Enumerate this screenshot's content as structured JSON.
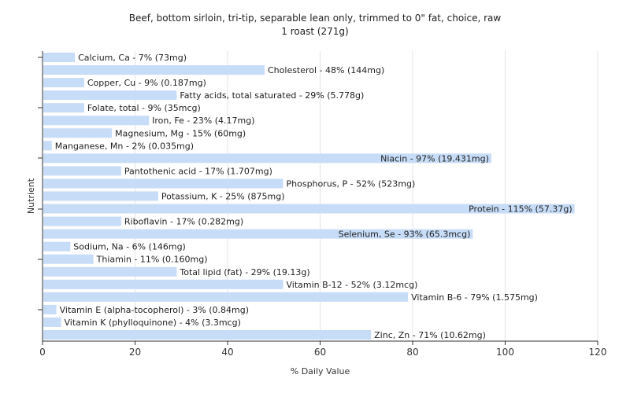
{
  "chart_data": {
    "type": "bar",
    "orientation": "horizontal",
    "title": "Beef, bottom sirloin, tri-tip, separable lean only, trimmed to 0\" fat, choice, raw",
    "subtitle": "1 roast (271g)",
    "xlabel": "% Daily Value",
    "ylabel": "Nutrient",
    "xlim": [
      0,
      120
    ],
    "xticks": [
      0,
      20,
      40,
      60,
      80,
      100,
      120
    ],
    "grid": true,
    "bar_color": "#c6dcf7",
    "categories": [
      "Calcium, Ca",
      "Cholesterol",
      "Copper, Cu",
      "Fatty acids, total saturated",
      "Folate, total",
      "Iron, Fe",
      "Magnesium, Mg",
      "Manganese, Mn",
      "Niacin",
      "Pantothenic acid",
      "Phosphorus, P",
      "Potassium, K",
      "Protein",
      "Riboflavin",
      "Selenium, Se",
      "Sodium, Na",
      "Thiamin",
      "Total lipid (fat)",
      "Vitamin B-12",
      "Vitamin B-6",
      "Vitamin E (alpha-tocopherol)",
      "Vitamin K (phylloquinone)",
      "Zinc, Zn"
    ],
    "values": [
      7,
      48,
      9,
      29,
      9,
      23,
      15,
      2,
      97,
      17,
      52,
      25,
      115,
      17,
      93,
      6,
      11,
      29,
      52,
      79,
      3,
      4,
      71
    ],
    "labels": [
      "Calcium, Ca - 7% (73mg)",
      "Cholesterol - 48% (144mg)",
      "Copper, Cu - 9% (0.187mg)",
      "Fatty acids, total saturated - 29% (5.778g)",
      "Folate, total - 9% (35mcg)",
      "Iron, Fe - 23% (4.17mg)",
      "Magnesium, Mg - 15% (60mg)",
      "Manganese, Mn - 2% (0.035mg)",
      "Niacin - 97% (19.431mg)",
      "Pantothenic acid - 17% (1.707mg)",
      "Phosphorus, P - 52% (523mg)",
      "Potassium, K - 25% (875mg)",
      "Protein - 115% (57.37g)",
      "Riboflavin - 17% (0.282mg)",
      "Selenium, Se - 93% (65.3mcg)",
      "Sodium, Na - 6% (146mg)",
      "Thiamin - 11% (0.160mg)",
      "Total lipid (fat) - 29% (19.13g)",
      "Vitamin B-12 - 52% (3.12mcg)",
      "Vitamin B-6 - 79% (1.575mg)",
      "Vitamin E (alpha-tocopherol) - 3% (0.84mg)",
      "Vitamin K (phylloquinone) - 4% (3.3mcg)",
      "Zinc, Zn - 71% (10.62mg)"
    ]
  }
}
